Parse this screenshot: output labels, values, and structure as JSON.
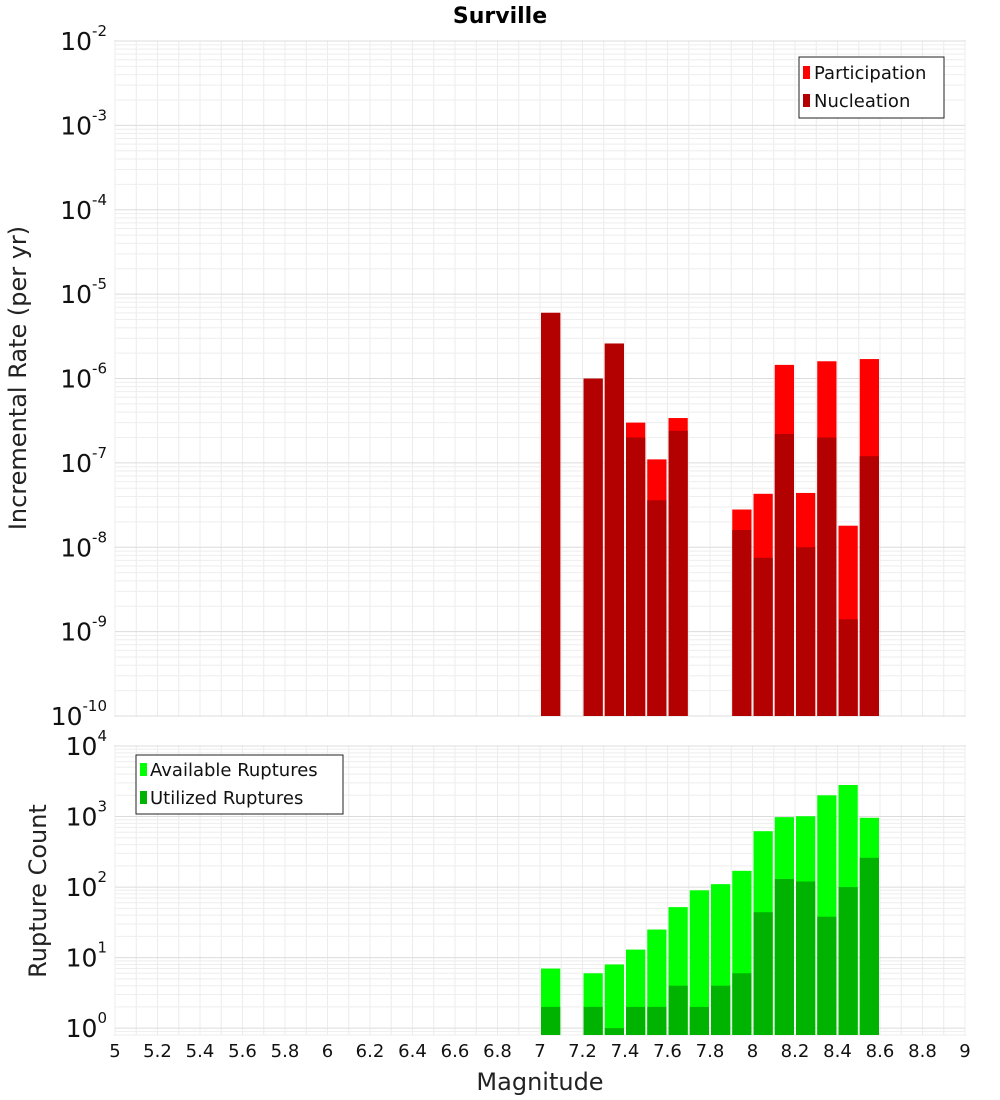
{
  "chart_data": [
    {
      "type": "bar",
      "title": "Surville",
      "xlabel": "",
      "ylabel": "Incremental Rate (per yr)",
      "yscale": "log",
      "ylim": [
        1e-10,
        0.01
      ],
      "xlim": [
        5,
        9
      ],
      "grid": true,
      "legend_position": "top-right",
      "y_ticks": [
        {
          "base": "10",
          "exp": "-10"
        },
        {
          "base": "10",
          "exp": "-9"
        },
        {
          "base": "10",
          "exp": "-8"
        },
        {
          "base": "10",
          "exp": "-7"
        },
        {
          "base": "10",
          "exp": "-6"
        },
        {
          "base": "10",
          "exp": "-5"
        },
        {
          "base": "10",
          "exp": "-4"
        },
        {
          "base": "10",
          "exp": "-3"
        },
        {
          "base": "10",
          "exp": "-2"
        }
      ],
      "x": [
        7.05,
        7.25,
        7.35,
        7.45,
        7.55,
        7.65,
        7.95,
        8.05,
        8.15,
        8.25,
        8.35,
        8.45,
        8.55
      ],
      "series": [
        {
          "name": "Participation",
          "color": "#ff0000",
          "values": [
            6e-06,
            1e-06,
            2.6e-06,
            3e-07,
            1.1e-07,
            3.4e-07,
            2.8e-08,
            4.3e-08,
            1.45e-06,
            4.4e-08,
            1.6e-06,
            1.8e-08,
            1.7e-06
          ]
        },
        {
          "name": "Nucleation",
          "color": "#b30000",
          "values": [
            6e-06,
            1e-06,
            2.6e-06,
            2e-07,
            3.6e-08,
            2.4e-07,
            1.6e-08,
            7.5e-09,
            2.2e-07,
            1e-08,
            2e-07,
            1.4e-09,
            1.2e-07
          ]
        }
      ]
    },
    {
      "type": "bar",
      "title": "",
      "xlabel": "Magnitude",
      "ylabel": "Rupture Count",
      "yscale": "log",
      "ylim": [
        0.8,
        10000
      ],
      "xlim": [
        5,
        9
      ],
      "grid": true,
      "legend_position": "top-left",
      "x_ticks": [
        "5",
        "5.2",
        "5.4",
        "5.6",
        "5.8",
        "6",
        "6.2",
        "6.4",
        "6.6",
        "6.8",
        "7",
        "7.2",
        "7.4",
        "7.6",
        "7.8",
        "8",
        "8.2",
        "8.4",
        "8.6",
        "8.8",
        "9"
      ],
      "y_ticks": [
        {
          "base": "10",
          "exp": "0"
        },
        {
          "base": "10",
          "exp": "1"
        },
        {
          "base": "10",
          "exp": "2"
        },
        {
          "base": "10",
          "exp": "3"
        },
        {
          "base": "10",
          "exp": "4"
        }
      ],
      "x": [
        7.05,
        7.25,
        7.35,
        7.45,
        7.55,
        7.65,
        7.75,
        7.85,
        7.95,
        8.05,
        8.15,
        8.25,
        8.35,
        8.45,
        8.55
      ],
      "series": [
        {
          "name": "Available Ruptures",
          "color": "#00ff00",
          "values": [
            7,
            6,
            8,
            13,
            25,
            52,
            90,
            110,
            170,
            620,
            980,
            1010,
            2000,
            2800,
            960
          ]
        },
        {
          "name": "Utilized Ruptures",
          "color": "#00b300",
          "values": [
            2,
            2,
            1,
            2,
            2,
            4,
            2,
            4,
            6,
            44,
            130,
            120,
            38,
            100,
            260
          ]
        }
      ]
    }
  ]
}
